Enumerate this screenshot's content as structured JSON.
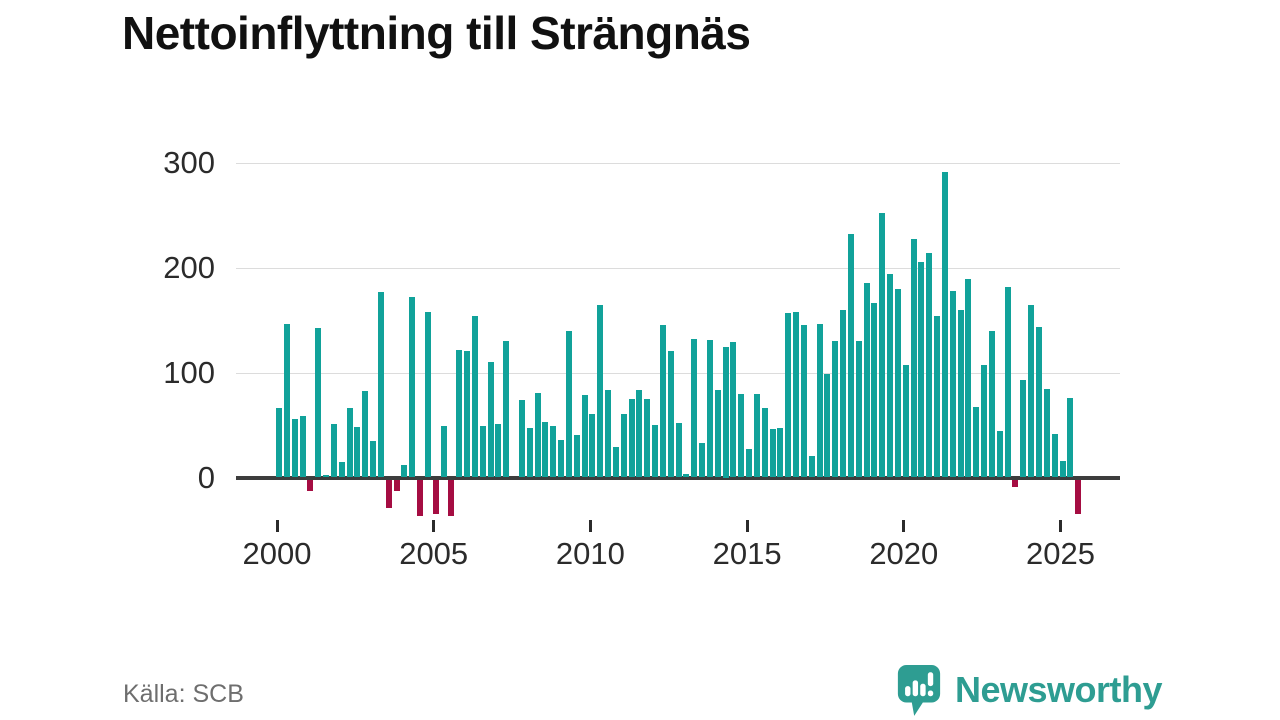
{
  "title": "Nettoinflyttning till Strängnäs",
  "source_label": "Källa: SCB",
  "brand": {
    "name": "Newsworthy",
    "color": "#2e9d92"
  },
  "colors": {
    "positive": "#11a29a",
    "negative": "#a50d42",
    "grid": "#dcdcdc",
    "zero_axis": "#3d3d3d",
    "axis_text": "#2b2b2b",
    "title_text": "#111111",
    "source_text": "#6e6e6e"
  },
  "chart_data": {
    "type": "bar",
    "title": "Nettoinflyttning till Strängnäs",
    "frequency": "quarterly",
    "start_period": "2000 Q1",
    "end_period": "2025 Q3",
    "grid": "horizontal",
    "ylim": [
      -40,
      310
    ],
    "y_ticks": [
      0,
      100,
      200,
      300
    ],
    "x_tick_years": [
      2000,
      2005,
      2010,
      2015,
      2020,
      2025
    ],
    "positive_color": "#11a29a",
    "negative_color": "#a50d42",
    "values_by_year": {
      "2000": [
        66,
        147,
        56,
        59
      ],
      "2001": [
        -11,
        143,
        2,
        51
      ],
      "2002": [
        15,
        66,
        48,
        83
      ],
      "2003": [
        35,
        177,
        -27,
        -11
      ],
      "2004": [
        12,
        172,
        -35,
        158
      ],
      "2005": [
        -33,
        49,
        -35,
        122
      ],
      "2006": [
        121,
        154,
        49,
        110
      ],
      "2007": [
        51,
        130,
        0,
        74
      ],
      "2008": [
        47,
        81,
        53,
        49
      ],
      "2009": [
        36,
        140,
        41,
        79
      ],
      "2010": [
        61,
        165,
        84,
        29
      ],
      "2011": [
        61,
        75,
        84,
        75
      ],
      "2012": [
        50,
        146,
        121,
        52
      ],
      "2013": [
        3,
        132,
        33,
        131
      ],
      "2014": [
        84,
        125,
        129,
        80
      ],
      "2015": [
        27,
        80,
        66,
        46
      ],
      "2016": [
        47,
        157,
        158,
        146
      ],
      "2017": [
        21,
        147,
        99,
        130
      ],
      "2018": [
        160,
        233,
        130,
        186
      ],
      "2019": [
        167,
        253,
        194,
        180
      ],
      "2020": [
        107,
        228,
        206,
        214
      ],
      "2021": [
        154,
        292,
        178,
        160
      ],
      "2022": [
        190,
        67,
        107,
        140
      ],
      "2023": [
        44,
        182,
        -7,
        93
      ],
      "2024": [
        165,
        144,
        85,
        42
      ],
      "2025": [
        16,
        76,
        -33
      ]
    }
  }
}
